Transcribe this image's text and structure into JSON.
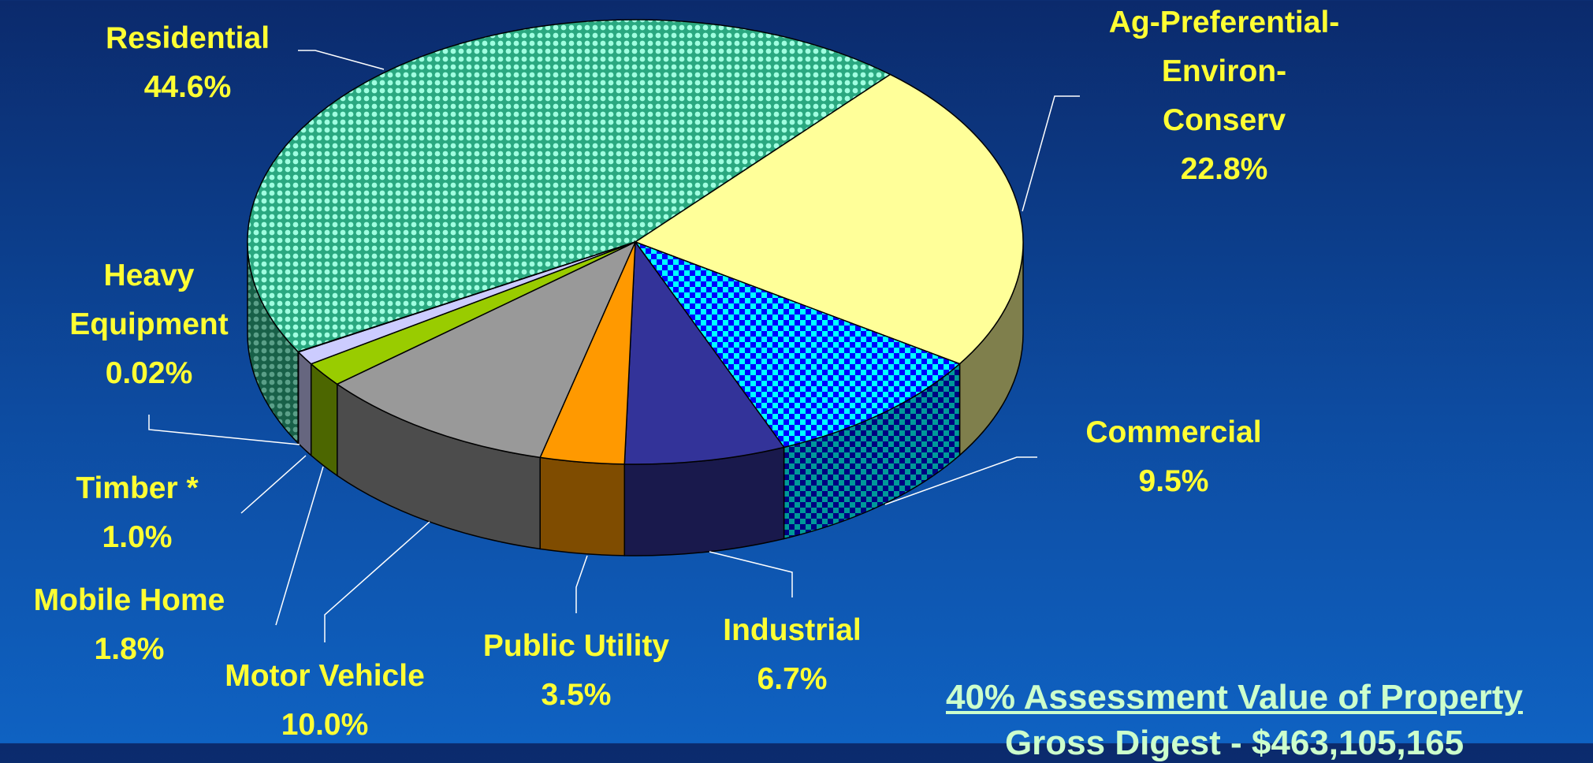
{
  "chart_data": {
    "type": "pie3d",
    "categories": [
      "Residential",
      "Ag-Preferential-Environ-Conserv",
      "Commercial",
      "Industrial",
      "Public Utility",
      "Motor Vehicle",
      "Mobile Home",
      "Timber *",
      "Heavy Equipment"
    ],
    "values": [
      44.6,
      22.8,
      9.5,
      6.7,
      3.5,
      10.0,
      1.8,
      1.0,
      0.02
    ],
    "value_labels": [
      "44.6%",
      "22.8%",
      "9.5%",
      "6.7%",
      "3.5%",
      "10.0%",
      "1.8%",
      "1.0%",
      "0.02%"
    ],
    "colors": [
      "#33cc99",
      "#ffff99",
      "#00ffff",
      "#333399",
      "#ff9900",
      "#999999",
      "#99cc00",
      "#ccccff",
      "#996633"
    ],
    "annotations": [
      "40% Assessment Value of Property",
      "Gross Digest - $463,105,165"
    ]
  }
}
